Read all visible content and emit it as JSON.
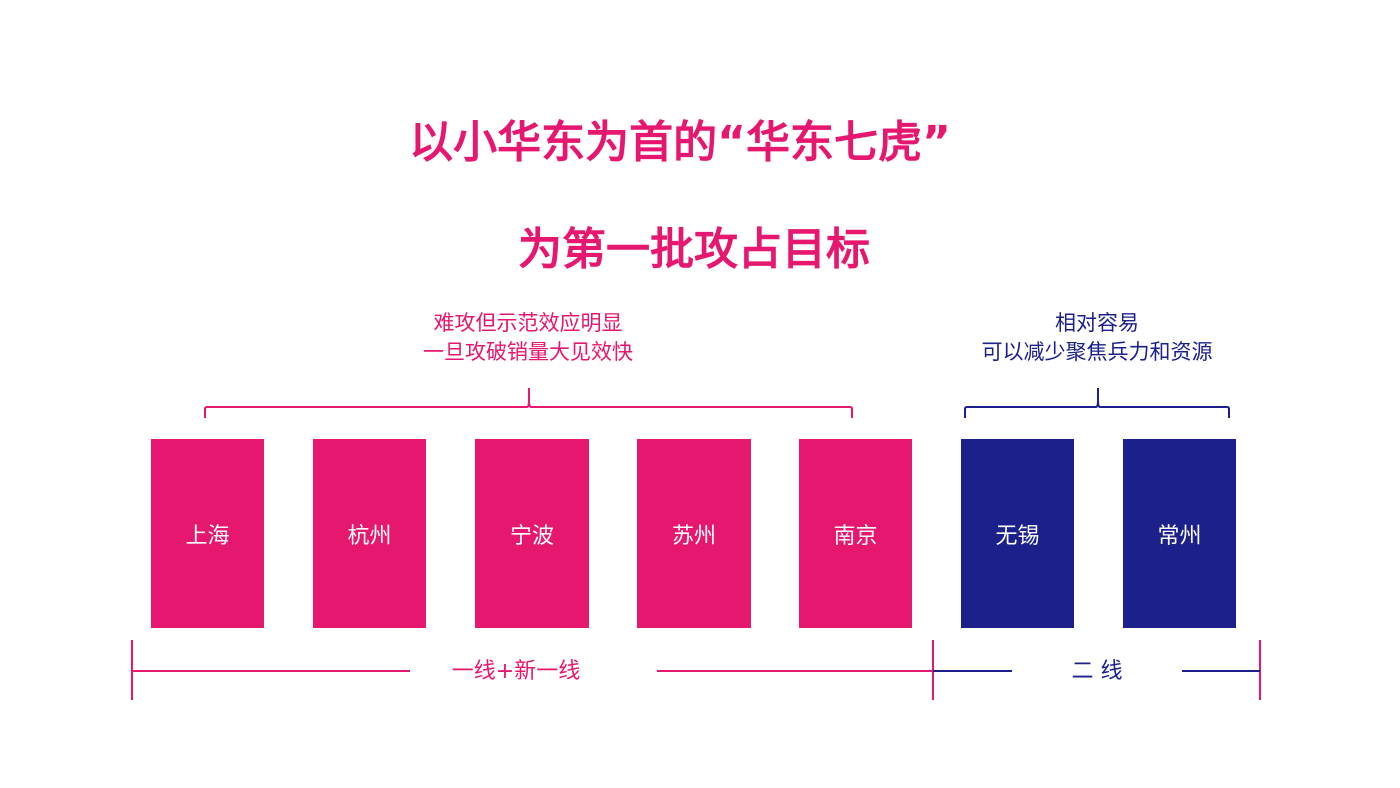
{
  "title": {
    "line1": "以小华东为首的“华东七虎”",
    "line2": "为第一批攻占目标"
  },
  "groups": {
    "first": {
      "note_line1": "难攻但示范效应明显",
      "note_line2": "一旦攻破销量大见效快",
      "tier_label": "一线+新一线",
      "color": "#E5176E"
    },
    "second": {
      "note_line1": "相对容易",
      "note_line2": "可以减少聚焦兵力和资源",
      "tier_label": "二 线",
      "color": "#1B208A"
    }
  },
  "cities": [
    "上海",
    "杭州",
    "宁波",
    "苏州",
    "南京",
    "无锡",
    "常州"
  ]
}
